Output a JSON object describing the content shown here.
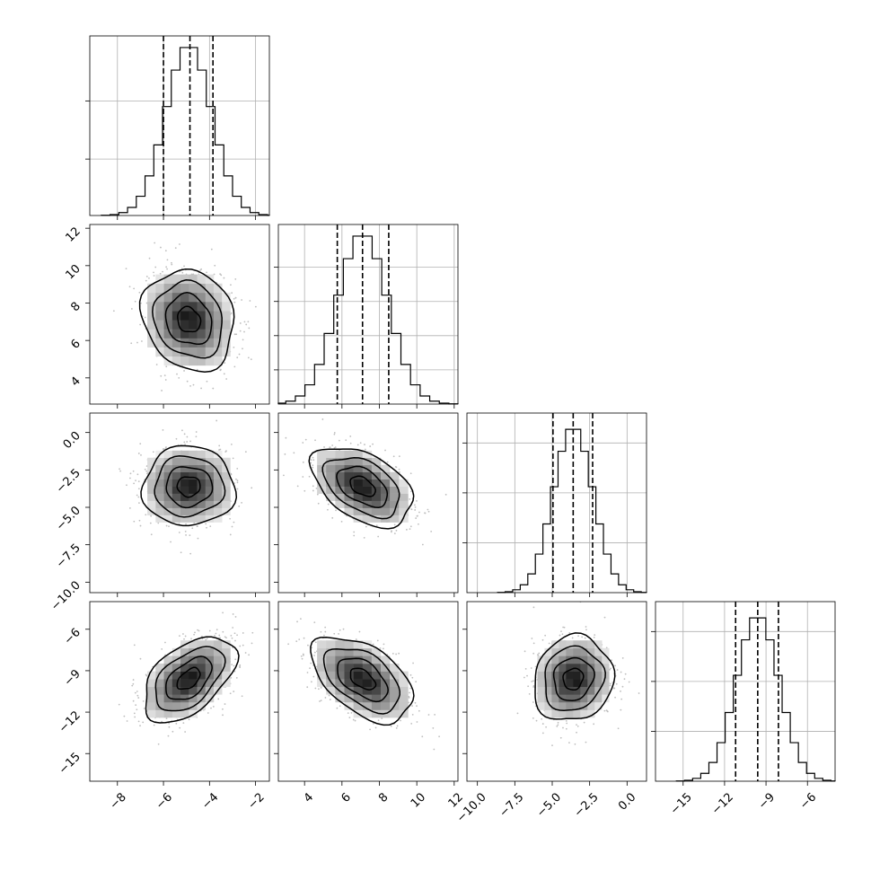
{
  "chart_data": {
    "type": "corner",
    "parameters": [
      {
        "ticks": [
          -8,
          -6,
          -4,
          -2
        ],
        "tick_labels": [
          "−8",
          "−6",
          "−4",
          "−2"
        ],
        "range": [
          -9.2,
          -1.4
        ],
        "quantiles": [
          -6.0,
          -4.85,
          -3.85
        ],
        "mean": -4.9,
        "std": 1.0,
        "hist_peak": 1.0,
        "hist_ylim": [
          0,
          1.05
        ],
        "hist_ticks": [
          0.33,
          0.67
        ]
      },
      {
        "ticks": [
          4,
          6,
          8,
          10,
          12
        ],
        "tick_labels": [
          "4",
          "6",
          "8",
          "10",
          "12"
        ],
        "range": [
          2.6,
          12.2
        ],
        "quantiles": [
          5.75,
          7.1,
          8.5
        ],
        "mean": 7.1,
        "std": 1.35,
        "hist_peak": 1.0,
        "hist_ylim": [
          0,
          1.05
        ],
        "hist_ticks": [
          0.2,
          0.4,
          0.6,
          0.8
        ]
      },
      {
        "ticks": [
          -10.0,
          -7.5,
          -5.0,
          -2.5,
          0.0
        ],
        "tick_labels": [
          "−10.0",
          "−7.5",
          "−5.0",
          "−2.5",
          "0.0"
        ],
        "range": [
          -10.7,
          1.3
        ],
        "quantiles": [
          -4.95,
          -3.6,
          -2.3
        ],
        "mean": -3.6,
        "std": 1.33,
        "hist_peak": 1.0,
        "hist_ylim": [
          0,
          1.08
        ],
        "hist_ticks": [
          0.3,
          0.6,
          0.9
        ]
      },
      {
        "ticks": [
          -15,
          -12,
          -9,
          -6
        ],
        "tick_labels": [
          "−15",
          "−12",
          "−9",
          "−6"
        ],
        "range": [
          -17.0,
          -4.0
        ],
        "quantiles": [
          -11.2,
          -9.6,
          -8.1
        ],
        "mean": -9.6,
        "std": 1.55,
        "hist_peak": 1.0,
        "hist_ylim": [
          0,
          1.08
        ],
        "hist_ticks": [
          0.3,
          0.6,
          0.9
        ]
      }
    ],
    "correlations": [
      {
        "pair": [
          1,
          0
        ],
        "rho": -0.15
      },
      {
        "pair": [
          2,
          0
        ],
        "rho": 0.0
      },
      {
        "pair": [
          2,
          1
        ],
        "rho": -0.45
      },
      {
        "pair": [
          3,
          0
        ],
        "rho": 0.5
      },
      {
        "pair": [
          3,
          1
        ],
        "rho": -0.5
      },
      {
        "pair": [
          3,
          2
        ],
        "rho": 0.1
      }
    ],
    "contour_levels_sigma": [
      0.5,
      1.0,
      1.5,
      2.0
    ],
    "grid": true,
    "histogram_bins": 20
  }
}
